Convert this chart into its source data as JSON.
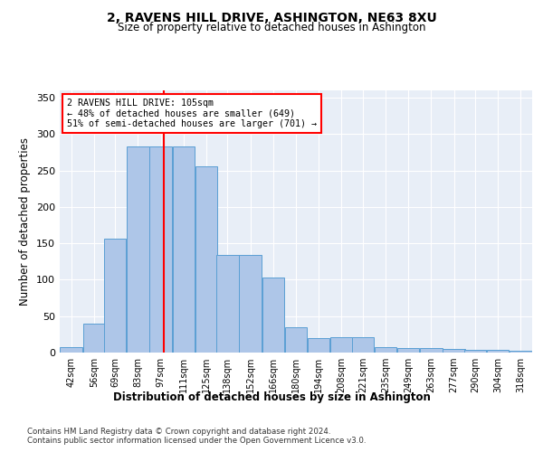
{
  "title": "2, RAVENS HILL DRIVE, ASHINGTON, NE63 8XU",
  "subtitle": "Size of property relative to detached houses in Ashington",
  "xlabel": "Distribution of detached houses by size in Ashington",
  "ylabel": "Number of detached properties",
  "bins": [
    42,
    56,
    69,
    83,
    97,
    111,
    125,
    138,
    152,
    166,
    180,
    194,
    208,
    221,
    235,
    249,
    263,
    277,
    290,
    304,
    318
  ],
  "bar_heights": [
    8,
    40,
    157,
    283,
    283,
    283,
    256,
    134,
    134,
    103,
    35,
    20,
    21,
    21,
    8,
    6,
    6,
    5,
    4,
    4,
    3
  ],
  "bar_color": "#aec6e8",
  "bar_edge_color": "#5a9fd4",
  "property_line_x": 105,
  "property_line_color": "red",
  "annotation_text": "2 RAVENS HILL DRIVE: 105sqm\n← 48% of detached houses are smaller (649)\n51% of semi-detached houses are larger (701) →",
  "annotation_box_color": "white",
  "annotation_box_edge": "red",
  "ylim": [
    0,
    360
  ],
  "yticks": [
    0,
    50,
    100,
    150,
    200,
    250,
    300,
    350
  ],
  "background_color": "#e8eef7",
  "footer_line1": "Contains HM Land Registry data © Crown copyright and database right 2024.",
  "footer_line2": "Contains public sector information licensed under the Open Government Licence v3.0."
}
